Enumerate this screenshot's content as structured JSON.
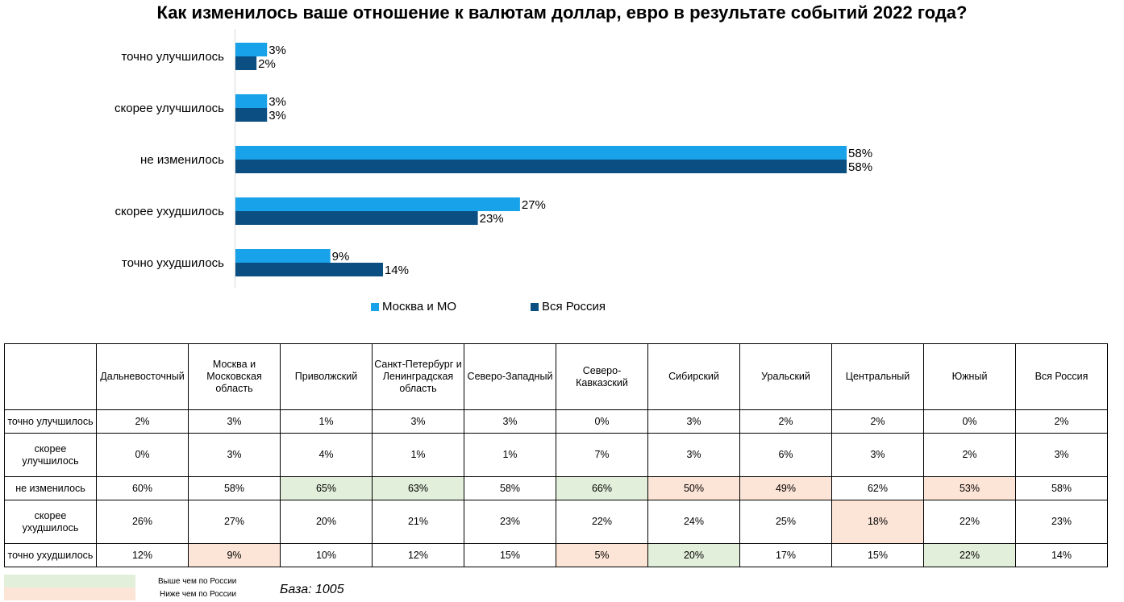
{
  "title": "Как изменилось ваше отношение к валютам доллар, евро в результате событий 2022 года?",
  "chart_data": {
    "type": "bar",
    "orientation": "horizontal",
    "title": "Как изменилось ваше отношение к валютам доллар, евро в результате событий 2022 года?",
    "categories": [
      "точно улучшилось",
      "скорее улучшилось",
      "не изменилось",
      "скорее  ухудшилось",
      "точно ухудшилось"
    ],
    "series": [
      {
        "name": "Москва и МО",
        "values": [
          3,
          3,
          58,
          27,
          9
        ],
        "labels": [
          "3%",
          "3%",
          "58%",
          "27%",
          "9%"
        ],
        "color": "#18a2ea"
      },
      {
        "name": "Вся Россия",
        "values": [
          2,
          3,
          58,
          23,
          14
        ],
        "labels": [
          "2%",
          "3%",
          "58%",
          "23%",
          "14%"
        ],
        "color": "#0b4f82"
      }
    ],
    "xlim": [
      0,
      100
    ],
    "grid": false,
    "legend_position": "bottom"
  },
  "table": {
    "columns": [
      "Дальневосточный",
      "Москва и Московская область",
      "Приволжский",
      "Санкт-Петербург и Ленинградская область",
      "Северо-Западный",
      "Северо-Кавказский",
      "Сибирский",
      "Уральский",
      "Центральный",
      "Южный",
      "Вся Россия"
    ],
    "rows": [
      {
        "label": "точно улучшилось",
        "values": [
          "2%",
          "3%",
          "1%",
          "3%",
          "3%",
          "0%",
          "3%",
          "2%",
          "2%",
          "0%",
          "2%"
        ],
        "marks": [
          "",
          "",
          "",
          "",
          "",
          "",
          "",
          "",
          "",
          "",
          ""
        ]
      },
      {
        "label": "скорее улучшилось",
        "values": [
          "0%",
          "3%",
          "4%",
          "1%",
          "1%",
          "7%",
          "3%",
          "6%",
          "3%",
          "2%",
          "3%"
        ],
        "marks": [
          "",
          "",
          "",
          "",
          "",
          "",
          "",
          "",
          "",
          "",
          ""
        ]
      },
      {
        "label": "не изменилось",
        "values": [
          "60%",
          "58%",
          "65%",
          "63%",
          "58%",
          "66%",
          "50%",
          "49%",
          "62%",
          "53%",
          "58%"
        ],
        "marks": [
          "",
          "",
          "higher",
          "higher",
          "",
          "higher",
          "lower",
          "lower",
          "",
          "lower",
          ""
        ]
      },
      {
        "label": "скорее ухудшилось",
        "values": [
          "26%",
          "27%",
          "20%",
          "21%",
          "23%",
          "22%",
          "24%",
          "25%",
          "18%",
          "22%",
          "23%"
        ],
        "marks": [
          "",
          "",
          "",
          "",
          "",
          "",
          "",
          "",
          "lower",
          "",
          ""
        ]
      },
      {
        "label": "точно ухудшилось",
        "values": [
          "12%",
          "9%",
          "10%",
          "12%",
          "15%",
          "5%",
          "20%",
          "17%",
          "15%",
          "22%",
          "14%"
        ],
        "marks": [
          "",
          "lower",
          "",
          "",
          "",
          "lower",
          "higher",
          "",
          "",
          "higher",
          ""
        ]
      }
    ]
  },
  "key": {
    "higher_label": "Выше чем по России",
    "lower_label": "Ниже чем по России",
    "higher_color": "#e2efda",
    "lower_color": "#fce4d6"
  },
  "base": "База: 1005"
}
